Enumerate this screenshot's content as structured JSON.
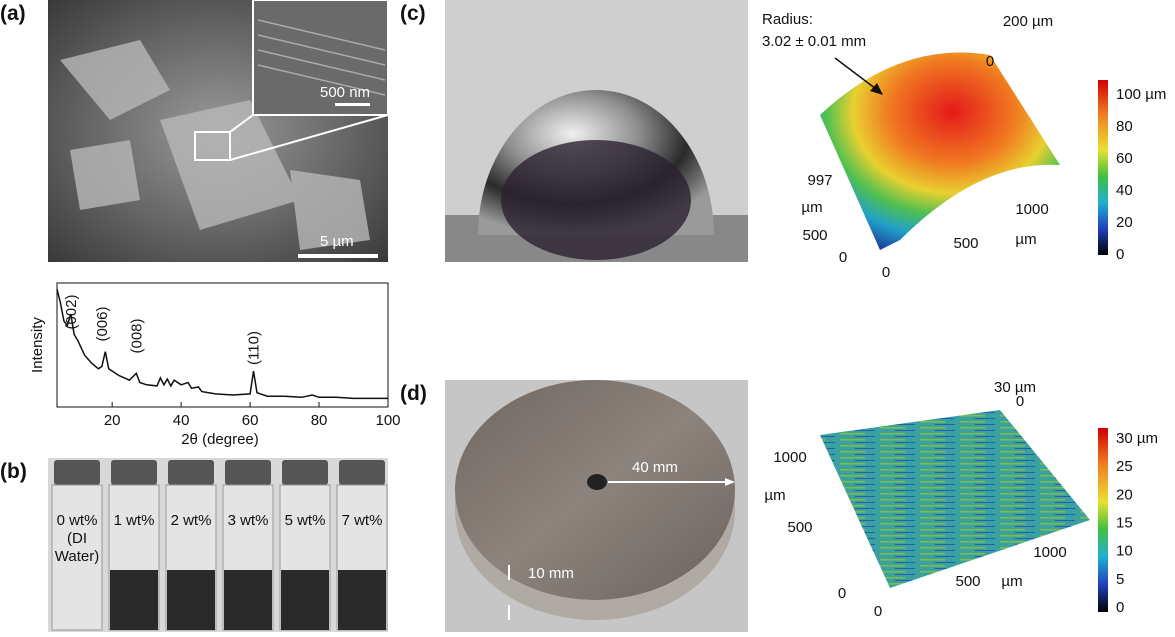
{
  "panels": {
    "a": "(a)",
    "b": "(b)",
    "c": "(c)",
    "d": "(d)"
  },
  "sem": {
    "inset_scale": "500 nm",
    "main_scale": "5 µm"
  },
  "xrd": {
    "y_label": "Intensity",
    "x_label": "2θ (degree)",
    "xlim": [
      4,
      100
    ],
    "xticks": [
      20,
      40,
      60,
      80,
      100
    ],
    "x": [
      4,
      5,
      6,
      7,
      8,
      9,
      10,
      12,
      14,
      16,
      17,
      18,
      19,
      22,
      25,
      27,
      28,
      30,
      33,
      34,
      35,
      36,
      37,
      38,
      40,
      42,
      43,
      45,
      46,
      50,
      55,
      60,
      61,
      62,
      65,
      70,
      75,
      78,
      80,
      85,
      90,
      95,
      100
    ],
    "values": [
      100,
      88,
      72,
      68,
      78,
      60,
      55,
      42,
      35,
      30,
      32,
      45,
      30,
      24,
      20,
      26,
      18,
      16,
      15,
      22,
      16,
      21,
      15,
      20,
      16,
      18,
      13,
      14,
      10,
      8,
      7,
      8,
      28,
      9,
      6,
      6,
      5,
      7,
      5,
      5,
      4,
      4,
      4
    ],
    "peaks": [
      {
        "label": "(002)",
        "x": 8
      },
      {
        "label": "(006)",
        "x": 17
      },
      {
        "label": "(008)",
        "x": 27
      },
      {
        "label": "(110)",
        "x": 61
      }
    ]
  },
  "vials": [
    [
      "0 wt%",
      "(DI",
      "Water)"
    ],
    [
      "1 wt%"
    ],
    [
      "2 wt%"
    ],
    [
      "3 wt%"
    ],
    [
      "5 wt%"
    ],
    [
      "7 wt%"
    ]
  ],
  "c_map": {
    "annotation": [
      "Radius:",
      "3.02 ± 0.01 mm"
    ],
    "axis_labels": [
      "200 µm",
      "0",
      "997",
      "µm",
      "500",
      "0",
      "0",
      "500",
      "1000",
      "µm"
    ],
    "colorbar": [
      "100 µm",
      "80",
      "60",
      "40",
      "20",
      "0"
    ]
  },
  "d_photo": {
    "diameter": "40 mm",
    "thickness": "10 mm"
  },
  "d_map": {
    "axis_labels": [
      "30 µm",
      "0",
      "1000",
      "µm",
      "500",
      "0",
      "0",
      "500",
      "µm",
      "1000"
    ],
    "colorbar": [
      "30 µm",
      "25",
      "20",
      "15",
      "10",
      "5",
      "0"
    ]
  }
}
